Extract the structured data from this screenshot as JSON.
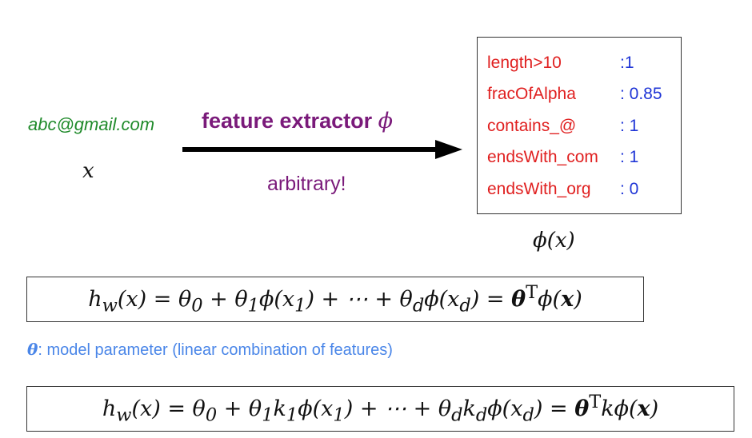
{
  "input": {
    "email": "abc@gmail.com",
    "variable": "x"
  },
  "extractor": {
    "label": "feature extractor",
    "symbol": "ϕ",
    "note": "arbitrary!"
  },
  "features": [
    {
      "name": "length>10",
      "value": ":1"
    },
    {
      "name": "fracOfAlpha",
      "value": ": 0.85"
    },
    {
      "name": "contains_@",
      "value": ": 1"
    },
    {
      "name": "endsWith_com",
      "value": ": 1"
    },
    {
      "name": "endsWith_org",
      "value": ": 0"
    }
  ],
  "output": {
    "label": "ϕ(x)"
  },
  "param_note": {
    "symbol": "θ",
    "text": ": model parameter (linear combination of features)"
  },
  "colors": {
    "input": "#1f8a2a",
    "extractor": "#7a1a7a",
    "feature_name": "#e02020",
    "feature_value": "#1f35d6",
    "note": "#4a86e8"
  }
}
